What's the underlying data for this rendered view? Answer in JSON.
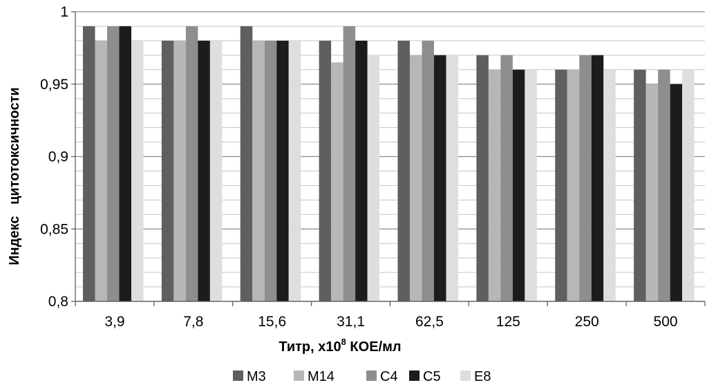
{
  "chart_data": {
    "type": "bar",
    "title": "",
    "categories": [
      "3,9",
      "7,8",
      "15,6",
      "31,1",
      "62,5",
      "125",
      "250",
      "500"
    ],
    "series": [
      {
        "name": "M3",
        "color": "#5f5f5f",
        "values": [
          0.99,
          0.98,
          0.99,
          0.98,
          0.98,
          0.97,
          0.96,
          0.96
        ]
      },
      {
        "name": "M14",
        "color": "#b7b7b7",
        "values": [
          0.98,
          0.98,
          0.98,
          0.965,
          0.97,
          0.96,
          0.96,
          0.95
        ]
      },
      {
        "name": "C4",
        "color": "#8e8e8e",
        "values": [
          0.99,
          0.99,
          0.98,
          0.99,
          0.98,
          0.97,
          0.97,
          0.96
        ]
      },
      {
        "name": "C5",
        "color": "#1c1c1c",
        "values": [
          0.99,
          0.98,
          0.98,
          0.98,
          0.97,
          0.96,
          0.97,
          0.95
        ]
      },
      {
        "name": "E8",
        "color": "#dedede",
        "values": [
          0.98,
          0.98,
          0.98,
          0.97,
          0.97,
          0.96,
          0.96,
          0.96
        ]
      }
    ],
    "xlabel_main": "Титр, х10",
    "xlabel_sup": "8",
    "xlabel_rest": " КОЕ/мл",
    "ylabel": "Индекс   цитотоксичности",
    "ylim": [
      0.8,
      1.0
    ],
    "yticks": [
      0.8,
      0.85,
      0.9,
      0.95,
      1.0
    ],
    "ytick_labels": [
      "0,8",
      "0,85",
      "0,9",
      "0,95",
      "1"
    ],
    "minor_gridlines": [
      0.81,
      0.82,
      0.83,
      0.84,
      0.86,
      0.87,
      0.88,
      0.89,
      0.91,
      0.92,
      0.93,
      0.94,
      0.96,
      0.97,
      0.98,
      0.99
    ],
    "grid": true,
    "legend_position": "bottom"
  }
}
